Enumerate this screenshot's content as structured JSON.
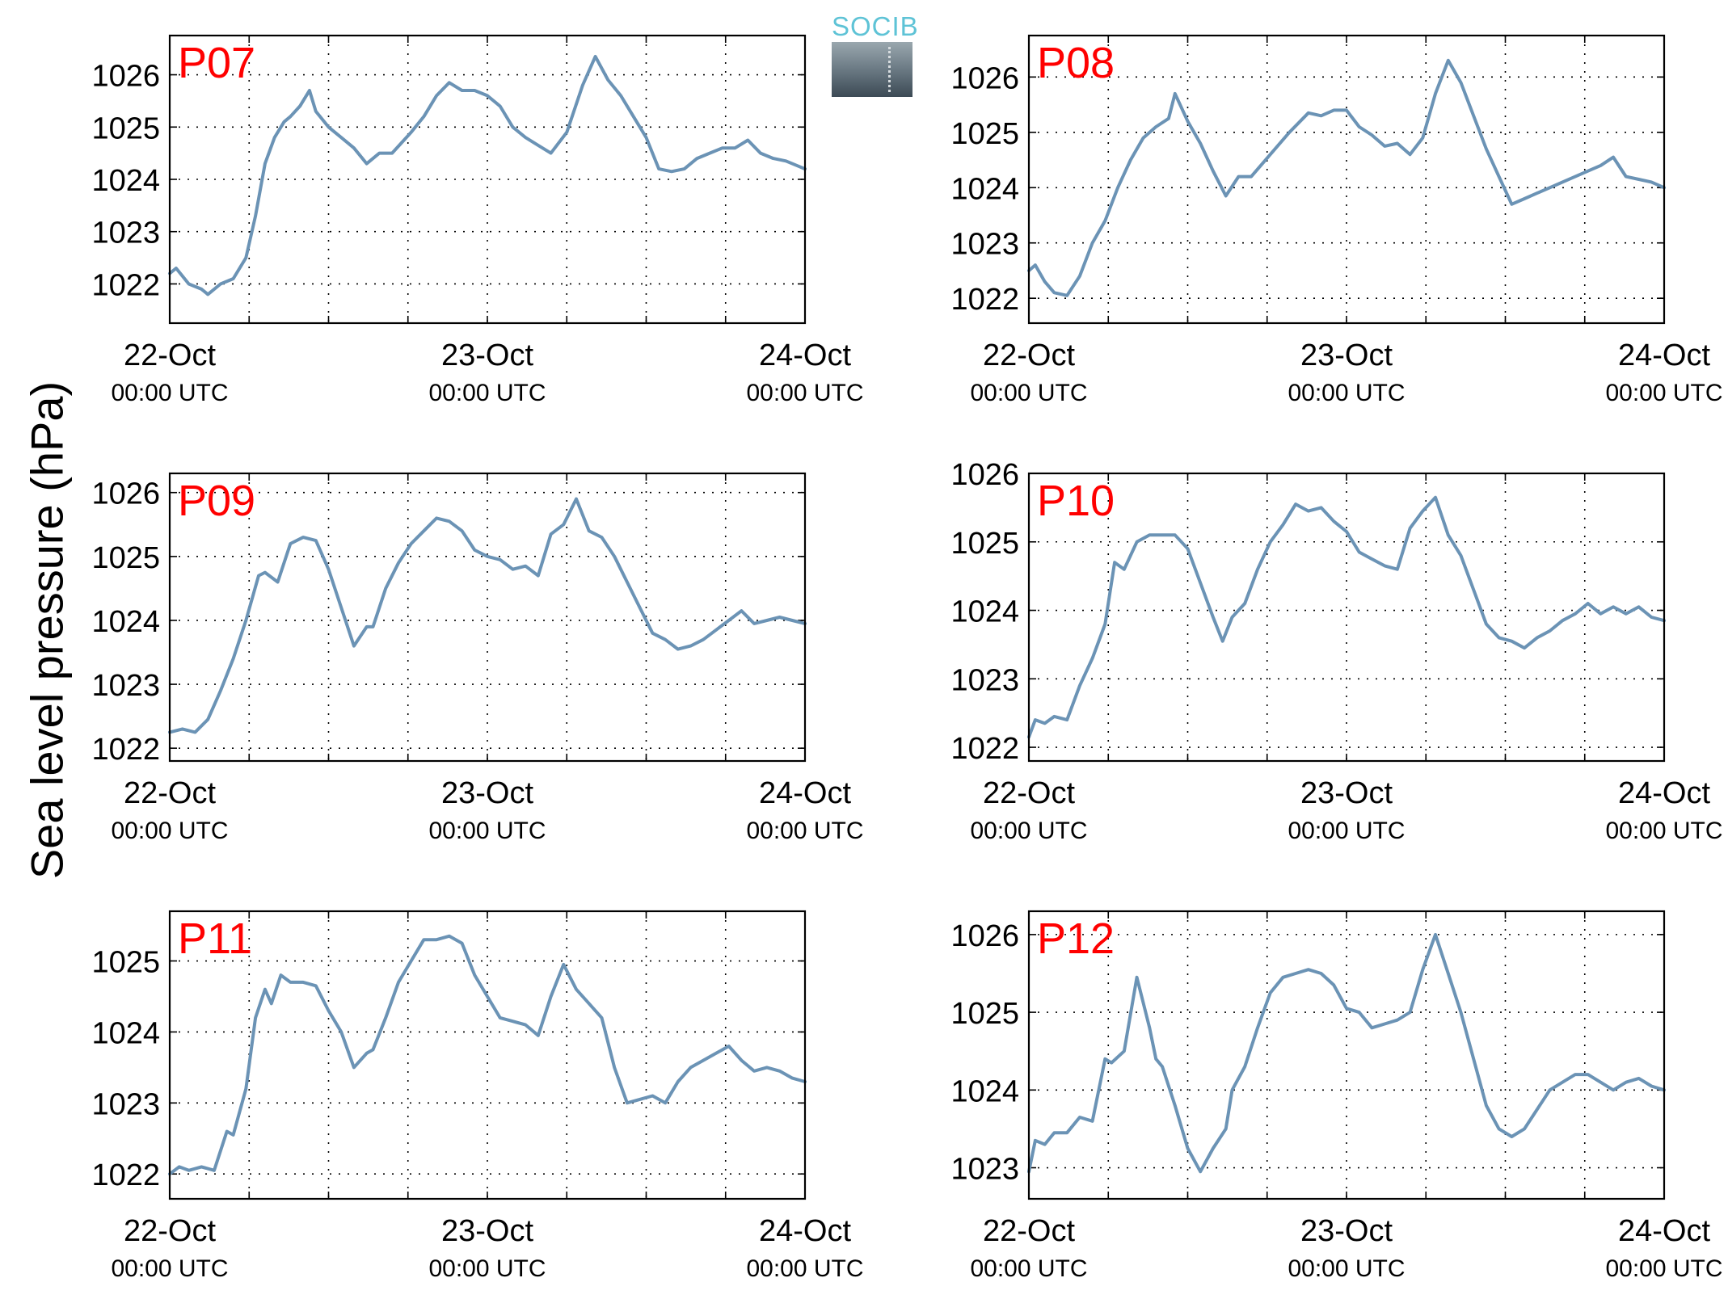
{
  "figure": {
    "ylabel": "Sea level pressure (hPa)",
    "logo_text": "SOCIB",
    "line_color": "#6b93b5",
    "panel_label_color": "#ff0000"
  },
  "chart_data": [
    {
      "type": "line",
      "panel_label": "P07",
      "x_ticks": [
        {
          "day": 0,
          "label": "22-Oct",
          "sub": "00:00 UTC"
        },
        {
          "day": 1,
          "label": "23-Oct",
          "sub": "00:00 UTC"
        },
        {
          "day": 2,
          "label": "24-Oct",
          "sub": "00:00 UTC"
        }
      ],
      "x_minor_hours": 6,
      "xlim_days": [
        0,
        2
      ],
      "ylim": [
        1021.25,
        1026.75
      ],
      "yticks": [
        1022,
        1023,
        1024,
        1025,
        1026
      ],
      "grid": "dotted",
      "series": [
        {
          "x_days": [
            0,
            0.02,
            0.06,
            0.1,
            0.12,
            0.16,
            0.2,
            0.24,
            0.27,
            0.3,
            0.33,
            0.36,
            0.38,
            0.41,
            0.44,
            0.46,
            0.5,
            0.54,
            0.58,
            0.62,
            0.66,
            0.7,
            0.76,
            0.8,
            0.84,
            0.88,
            0.92,
            0.96,
            1.0,
            1.04,
            1.08,
            1.12,
            1.16,
            1.2,
            1.25,
            1.3,
            1.34,
            1.38,
            1.42,
            1.46,
            1.5,
            1.54,
            1.58,
            1.62,
            1.66,
            1.7,
            1.74,
            1.78,
            1.82,
            1.86,
            1.9,
            1.94,
            1.98,
            2.0
          ],
          "y": [
            1022.2,
            1022.3,
            1022.0,
            1021.9,
            1021.8,
            1022.0,
            1022.1,
            1022.5,
            1023.3,
            1024.3,
            1024.8,
            1025.1,
            1025.2,
            1025.4,
            1025.7,
            1025.3,
            1025.0,
            1024.8,
            1024.6,
            1024.3,
            1024.5,
            1024.5,
            1024.9,
            1025.2,
            1025.6,
            1025.85,
            1025.7,
            1025.7,
            1025.6,
            1025.4,
            1025.0,
            1024.8,
            1024.65,
            1024.5,
            1024.9,
            1025.8,
            1026.35,
            1025.9,
            1025.6,
            1025.2,
            1024.8,
            1024.2,
            1024.15,
            1024.2,
            1024.4,
            1024.5,
            1024.6,
            1024.6,
            1024.75,
            1024.5,
            1024.4,
            1024.35,
            1024.25,
            1024.2
          ]
        }
      ]
    },
    {
      "type": "line",
      "panel_label": "P08",
      "x_ticks": [
        {
          "day": 0,
          "label": "22-Oct",
          "sub": "00:00 UTC"
        },
        {
          "day": 1,
          "label": "23-Oct",
          "sub": "00:00 UTC"
        },
        {
          "day": 2,
          "label": "24-Oct",
          "sub": "00:00 UTC"
        }
      ],
      "x_minor_hours": 6,
      "xlim_days": [
        0,
        2
      ],
      "ylim": [
        1021.55,
        1026.75
      ],
      "yticks": [
        1022,
        1023,
        1024,
        1025,
        1026
      ],
      "grid": "dotted",
      "series": [
        {
          "x_days": [
            0,
            0.02,
            0.05,
            0.08,
            0.12,
            0.16,
            0.2,
            0.24,
            0.28,
            0.32,
            0.36,
            0.4,
            0.44,
            0.46,
            0.5,
            0.54,
            0.58,
            0.62,
            0.66,
            0.7,
            0.76,
            0.82,
            0.88,
            0.92,
            0.96,
            1.0,
            1.04,
            1.08,
            1.12,
            1.16,
            1.2,
            1.24,
            1.28,
            1.32,
            1.36,
            1.4,
            1.44,
            1.48,
            1.52,
            1.56,
            1.6,
            1.64,
            1.68,
            1.72,
            1.76,
            1.8,
            1.84,
            1.88,
            1.92,
            1.96,
            2.0
          ],
          "y": [
            1022.5,
            1022.6,
            1022.3,
            1022.1,
            1022.05,
            1022.4,
            1023.0,
            1023.4,
            1024.0,
            1024.5,
            1024.9,
            1025.1,
            1025.25,
            1025.7,
            1025.2,
            1024.8,
            1024.3,
            1023.85,
            1024.2,
            1024.2,
            1024.6,
            1025.0,
            1025.35,
            1025.3,
            1025.4,
            1025.4,
            1025.1,
            1024.95,
            1024.75,
            1024.8,
            1024.6,
            1024.9,
            1025.7,
            1026.3,
            1025.9,
            1025.3,
            1024.7,
            1024.2,
            1023.7,
            1023.8,
            1023.9,
            1024.0,
            1024.1,
            1024.2,
            1024.3,
            1024.4,
            1024.55,
            1024.2,
            1024.15,
            1024.1,
            1024.0
          ]
        }
      ]
    },
    {
      "type": "line",
      "panel_label": "P09",
      "x_ticks": [
        {
          "day": 0,
          "label": "22-Oct",
          "sub": "00:00 UTC"
        },
        {
          "day": 1,
          "label": "23-Oct",
          "sub": "00:00 UTC"
        },
        {
          "day": 2,
          "label": "24-Oct",
          "sub": "00:00 UTC"
        }
      ],
      "x_minor_hours": 6,
      "xlim_days": [
        0,
        2
      ],
      "ylim": [
        1021.8,
        1026.3
      ],
      "yticks": [
        1022,
        1023,
        1024,
        1025,
        1026
      ],
      "grid": "dotted",
      "series": [
        {
          "x_days": [
            0,
            0.04,
            0.08,
            0.12,
            0.16,
            0.2,
            0.24,
            0.28,
            0.3,
            0.34,
            0.38,
            0.42,
            0.46,
            0.5,
            0.54,
            0.58,
            0.62,
            0.64,
            0.68,
            0.72,
            0.76,
            0.8,
            0.84,
            0.88,
            0.92,
            0.96,
            1.0,
            1.04,
            1.08,
            1.12,
            1.16,
            1.2,
            1.24,
            1.28,
            1.32,
            1.36,
            1.4,
            1.44,
            1.48,
            1.52,
            1.56,
            1.6,
            1.64,
            1.68,
            1.72,
            1.76,
            1.8,
            1.84,
            1.88,
            1.92,
            1.96,
            2.0
          ],
          "y": [
            1022.25,
            1022.3,
            1022.25,
            1022.45,
            1022.9,
            1023.4,
            1024.0,
            1024.7,
            1024.75,
            1024.6,
            1025.2,
            1025.3,
            1025.25,
            1024.8,
            1024.2,
            1023.6,
            1023.9,
            1023.9,
            1024.5,
            1024.9,
            1025.2,
            1025.4,
            1025.6,
            1025.55,
            1025.4,
            1025.1,
            1025.0,
            1024.95,
            1024.8,
            1024.85,
            1024.7,
            1025.35,
            1025.5,
            1025.9,
            1025.4,
            1025.3,
            1025.0,
            1024.6,
            1024.2,
            1023.8,
            1023.7,
            1023.55,
            1023.6,
            1023.7,
            1023.85,
            1024.0,
            1024.15,
            1023.95,
            1024.0,
            1024.05,
            1024.0,
            1023.95
          ]
        }
      ]
    },
    {
      "type": "line",
      "panel_label": "P10",
      "x_ticks": [
        {
          "day": 0,
          "label": "22-Oct",
          "sub": "00:00 UTC"
        },
        {
          "day": 1,
          "label": "23-Oct",
          "sub": "00:00 UTC"
        },
        {
          "day": 2,
          "label": "24-Oct",
          "sub": "00:00 UTC"
        }
      ],
      "x_minor_hours": 6,
      "xlim_days": [
        0,
        2
      ],
      "ylim": [
        1021.8,
        1026.0
      ],
      "yticks": [
        1022,
        1023,
        1024,
        1025,
        1026
      ],
      "grid": "dotted",
      "series": [
        {
          "x_days": [
            0,
            0.02,
            0.05,
            0.08,
            0.12,
            0.16,
            0.2,
            0.24,
            0.27,
            0.3,
            0.34,
            0.38,
            0.42,
            0.46,
            0.5,
            0.54,
            0.58,
            0.61,
            0.64,
            0.68,
            0.72,
            0.76,
            0.8,
            0.84,
            0.88,
            0.92,
            0.96,
            1.0,
            1.04,
            1.08,
            1.12,
            1.16,
            1.2,
            1.24,
            1.28,
            1.32,
            1.36,
            1.4,
            1.44,
            1.48,
            1.52,
            1.56,
            1.6,
            1.64,
            1.68,
            1.72,
            1.76,
            1.8,
            1.84,
            1.88,
            1.92,
            1.96,
            2.0
          ],
          "y": [
            1022.15,
            1022.4,
            1022.35,
            1022.45,
            1022.4,
            1022.9,
            1023.3,
            1023.8,
            1024.7,
            1024.6,
            1025.0,
            1025.1,
            1025.1,
            1025.1,
            1024.9,
            1024.4,
            1023.9,
            1023.55,
            1023.9,
            1024.1,
            1024.6,
            1025.0,
            1025.25,
            1025.55,
            1025.45,
            1025.5,
            1025.3,
            1025.15,
            1024.85,
            1024.75,
            1024.65,
            1024.6,
            1025.2,
            1025.45,
            1025.65,
            1025.1,
            1024.8,
            1024.3,
            1023.8,
            1023.6,
            1023.55,
            1023.45,
            1023.6,
            1023.7,
            1023.85,
            1023.95,
            1024.1,
            1023.95,
            1024.05,
            1023.95,
            1024.05,
            1023.9,
            1023.85
          ]
        }
      ]
    },
    {
      "type": "line",
      "panel_label": "P11",
      "x_ticks": [
        {
          "day": 0,
          "label": "22-Oct",
          "sub": "00:00 UTC"
        },
        {
          "day": 1,
          "label": "23-Oct",
          "sub": "00:00 UTC"
        },
        {
          "day": 2,
          "label": "24-Oct",
          "sub": "00:00 UTC"
        }
      ],
      "x_minor_hours": 6,
      "xlim_days": [
        0,
        2
      ],
      "ylim": [
        1021.65,
        1025.7
      ],
      "yticks": [
        1022,
        1023,
        1024,
        1025
      ],
      "grid": "dotted",
      "series": [
        {
          "x_days": [
            0,
            0.03,
            0.06,
            0.1,
            0.14,
            0.18,
            0.2,
            0.24,
            0.27,
            0.3,
            0.32,
            0.35,
            0.38,
            0.42,
            0.46,
            0.5,
            0.54,
            0.58,
            0.62,
            0.64,
            0.68,
            0.72,
            0.76,
            0.8,
            0.84,
            0.88,
            0.92,
            0.96,
            1.0,
            1.04,
            1.08,
            1.12,
            1.16,
            1.2,
            1.24,
            1.28,
            1.32,
            1.36,
            1.4,
            1.44,
            1.48,
            1.52,
            1.56,
            1.6,
            1.64,
            1.68,
            1.72,
            1.76,
            1.8,
            1.84,
            1.88,
            1.92,
            1.96,
            2.0
          ],
          "y": [
            1022.0,
            1022.1,
            1022.05,
            1022.1,
            1022.05,
            1022.6,
            1022.55,
            1023.2,
            1024.2,
            1024.6,
            1024.4,
            1024.8,
            1024.7,
            1024.7,
            1024.65,
            1024.3,
            1024.0,
            1023.5,
            1023.7,
            1023.75,
            1024.2,
            1024.7,
            1025.0,
            1025.3,
            1025.3,
            1025.35,
            1025.25,
            1024.8,
            1024.5,
            1024.2,
            1024.15,
            1024.1,
            1023.95,
            1024.5,
            1024.95,
            1024.6,
            1024.4,
            1024.2,
            1023.5,
            1023.0,
            1023.05,
            1023.1,
            1023.0,
            1023.3,
            1023.5,
            1023.6,
            1023.7,
            1023.8,
            1023.6,
            1023.45,
            1023.5,
            1023.45,
            1023.35,
            1023.3
          ]
        }
      ]
    },
    {
      "type": "line",
      "panel_label": "P12",
      "x_ticks": [
        {
          "day": 0,
          "label": "22-Oct",
          "sub": "00:00 UTC"
        },
        {
          "day": 1,
          "label": "23-Oct",
          "sub": "00:00 UTC"
        },
        {
          "day": 2,
          "label": "24-Oct",
          "sub": "00:00 UTC"
        }
      ],
      "x_minor_hours": 6,
      "xlim_days": [
        0,
        2
      ],
      "ylim": [
        1022.6,
        1026.3
      ],
      "yticks": [
        1023,
        1024,
        1025,
        1026
      ],
      "grid": "dotted",
      "series": [
        {
          "x_days": [
            0,
            0.02,
            0.05,
            0.08,
            0.12,
            0.16,
            0.2,
            0.24,
            0.26,
            0.3,
            0.34,
            0.38,
            0.4,
            0.42,
            0.46,
            0.5,
            0.54,
            0.58,
            0.62,
            0.64,
            0.68,
            0.72,
            0.76,
            0.8,
            0.84,
            0.88,
            0.92,
            0.96,
            1.0,
            1.04,
            1.08,
            1.12,
            1.16,
            1.2,
            1.24,
            1.28,
            1.32,
            1.36,
            1.4,
            1.44,
            1.48,
            1.52,
            1.56,
            1.6,
            1.64,
            1.68,
            1.72,
            1.76,
            1.8,
            1.84,
            1.88,
            1.92,
            1.96,
            2.0
          ],
          "y": [
            1022.95,
            1023.35,
            1023.3,
            1023.45,
            1023.45,
            1023.65,
            1023.6,
            1024.4,
            1024.35,
            1024.5,
            1025.45,
            1024.8,
            1024.4,
            1024.3,
            1023.8,
            1023.25,
            1022.95,
            1023.25,
            1023.5,
            1024.0,
            1024.3,
            1024.8,
            1025.25,
            1025.45,
            1025.5,
            1025.55,
            1025.5,
            1025.35,
            1025.05,
            1025.0,
            1024.8,
            1024.85,
            1024.9,
            1025.0,
            1025.55,
            1026.0,
            1025.5,
            1025.0,
            1024.4,
            1023.8,
            1023.5,
            1023.4,
            1023.5,
            1023.75,
            1024.0,
            1024.1,
            1024.2,
            1024.2,
            1024.1,
            1024.0,
            1024.1,
            1024.15,
            1024.05,
            1024.0
          ]
        }
      ]
    }
  ]
}
